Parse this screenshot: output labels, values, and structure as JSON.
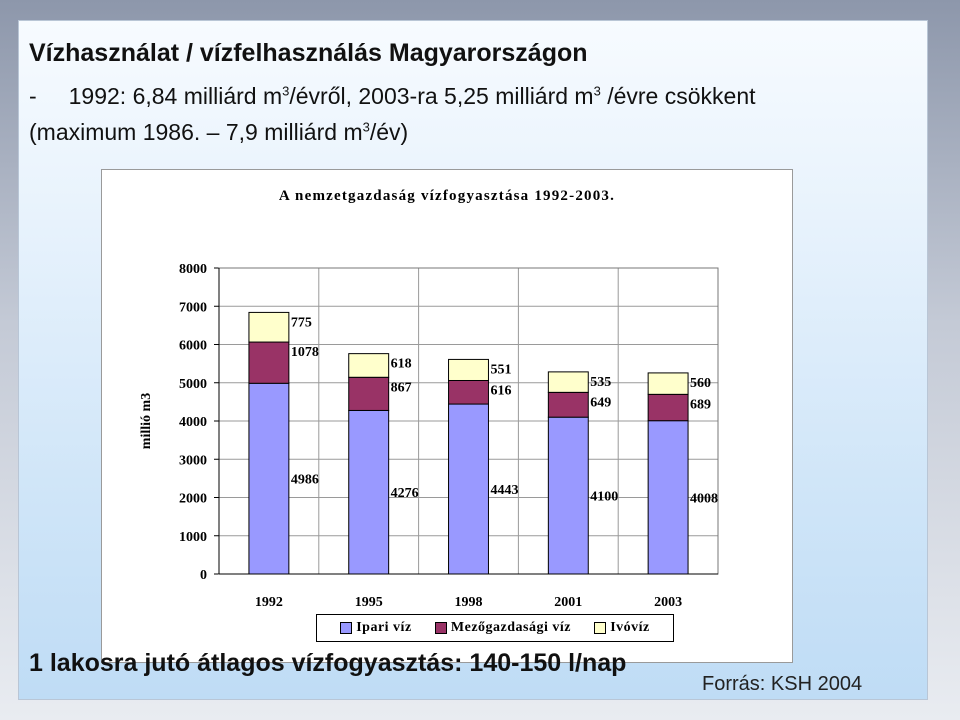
{
  "slide": {
    "title": "Vízhasználat / vízfelhasználás Magyarországon",
    "line1": {
      "dash": "-",
      "text_a": "1992: 6,84 milliárd m",
      "sup_a": "3",
      "text_b": "/évről, 2003-ra 5,25 milliárd m",
      "sup_b": "3",
      "text_c": " /évre csökkent"
    },
    "line2": {
      "text_a": "(maximum 1986. – 7,9 milliárd m",
      "sup_a": "3",
      "text_b": "/év)"
    },
    "bottom_note": "1 lakosra jutó átlagos vízfogyasztás: 140-150 l/nap",
    "source": "Forrás: KSH 2004"
  },
  "colors": {
    "ipari": "#9999ff",
    "mezogazdasagi": "#993366",
    "ivoviz": "#ffffcc",
    "grid": "#9a9a9a"
  },
  "chart_data": {
    "type": "bar",
    "stacked": true,
    "title": "A nemzetgazdaság vízfogyasztása 1992-2003.",
    "ylabel": "millió m3",
    "xlabel": "",
    "ylim": [
      0,
      8000
    ],
    "yticks": [
      0,
      1000,
      2000,
      3000,
      4000,
      5000,
      6000,
      7000,
      8000
    ],
    "grid": true,
    "legend_position": "bottom",
    "categories": [
      "1992",
      "1995",
      "1998",
      "2001",
      "2003"
    ],
    "series": [
      {
        "name": "Ipari víz",
        "color": "#9999ff",
        "values": [
          4986,
          4276,
          4443,
          4100,
          4008
        ]
      },
      {
        "name": "Mezőgazdasági víz",
        "color": "#993366",
        "values": [
          1078,
          867,
          616,
          649,
          689
        ]
      },
      {
        "name": "Ivóvíz",
        "color": "#ffffcc",
        "values": [
          775,
          618,
          551,
          535,
          560
        ]
      }
    ]
  }
}
